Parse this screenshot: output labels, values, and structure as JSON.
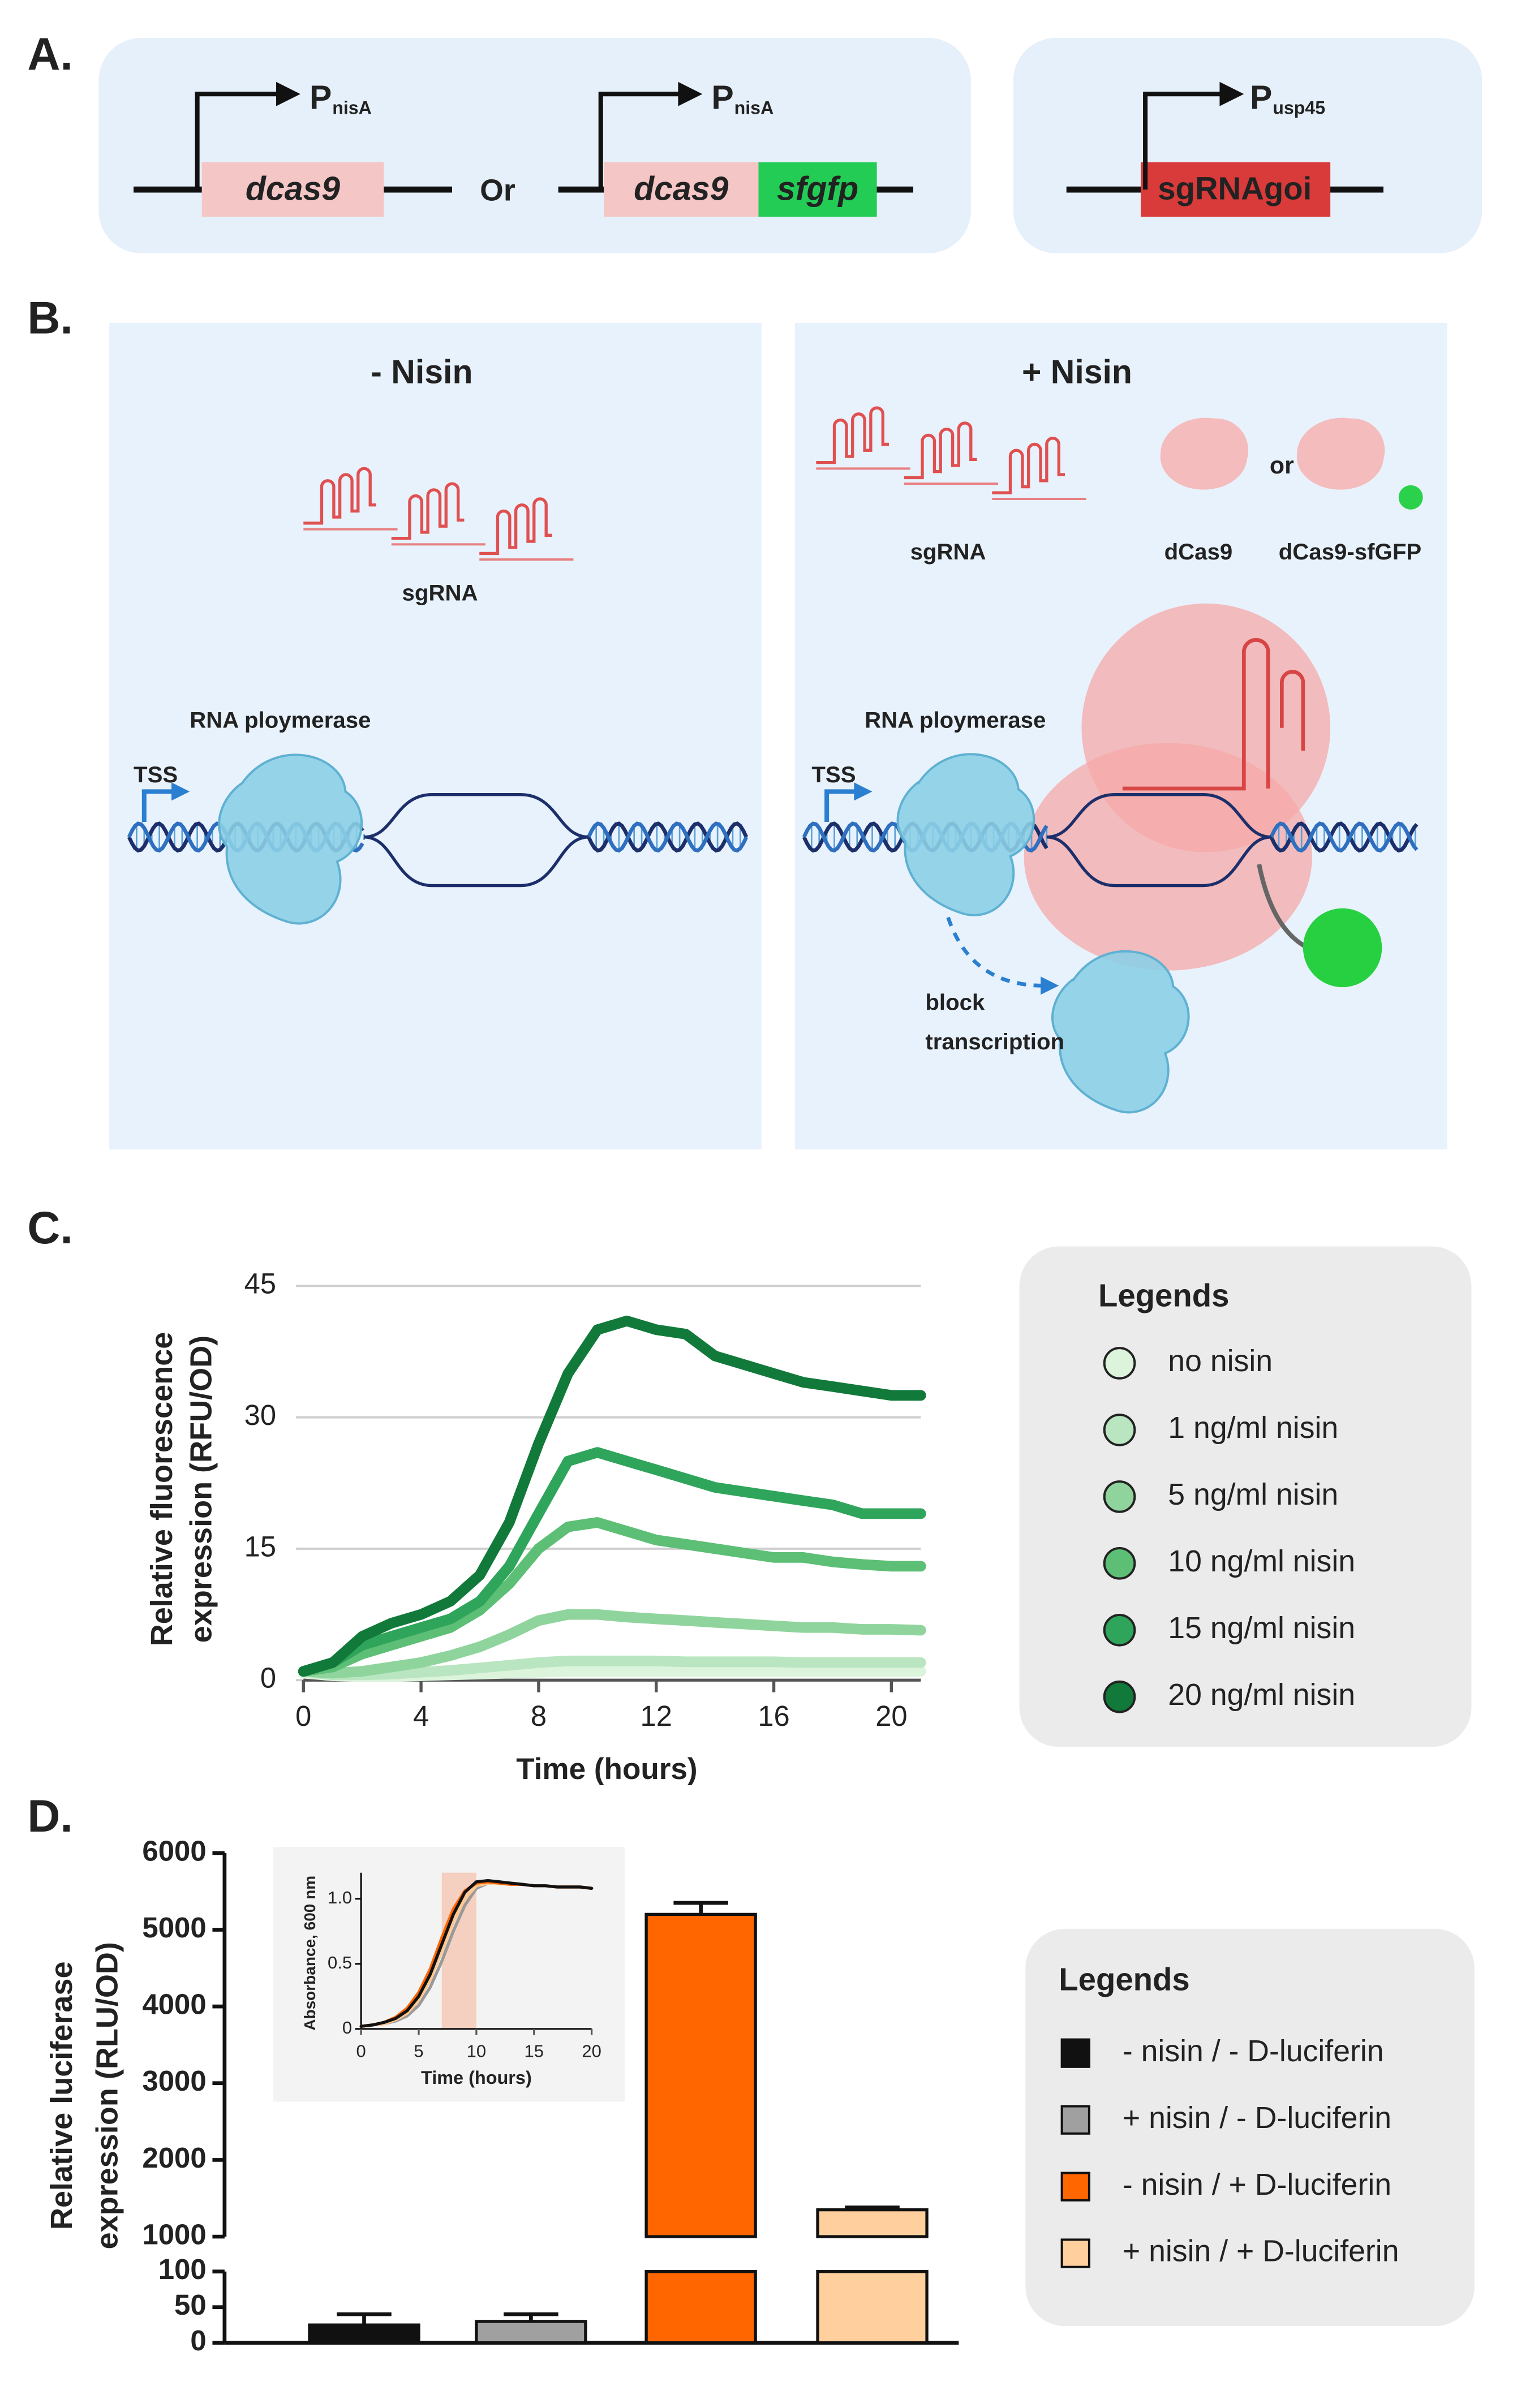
{
  "panel_a": {
    "label": "A.",
    "construct_1": {
      "promoter": "P",
      "promoter_sub": "nisA",
      "gene": "dcas9"
    },
    "or": "Or",
    "construct_2": {
      "promoter": "P",
      "promoter_sub": "nisA",
      "genes": [
        "dcas9",
        "sfgfp"
      ]
    },
    "construct_3": {
      "promoter": "P",
      "promoter_sub": "usp45",
      "gene": "sgRNAgoi"
    }
  },
  "panel_b": {
    "label": "B.",
    "left": {
      "title": "- Nisin",
      "sgrna": "sgRNA",
      "polymerase": "RNA ploymerase",
      "tss": "TSS"
    },
    "right": {
      "title": "+ Nisin",
      "sgrna": "sgRNA",
      "dcas9": "dCas9",
      "or": "or",
      "dcas9_sfgfp": "dCas9-sfGFP",
      "polymerase": "RNA ploymerase",
      "tss": "TSS",
      "block": [
        "block",
        "transcription"
      ]
    }
  },
  "chart_data": [
    {
      "type": "line",
      "panel": "C.",
      "y_label": [
        "Relative fluorescence",
        "expression (RFU/OD)"
      ],
      "x_label": "Time (hours)",
      "x": [
        0,
        1,
        2,
        3,
        4,
        5,
        6,
        7,
        8,
        9,
        10,
        11,
        12,
        13,
        14,
        15,
        16,
        17,
        18,
        19,
        20,
        21
      ],
      "xlim": [
        0,
        21
      ],
      "xticks": [
        0,
        4,
        8,
        12,
        16,
        20
      ],
      "ylim": [
        0,
        45
      ],
      "yticks": [
        0,
        15,
        30,
        45
      ],
      "grid": true,
      "legend_title": "Legends",
      "series": [
        {
          "name": "no nisin",
          "color": "#dcf3dc",
          "values": [
            0.8,
            0.5,
            0.4,
            0.4,
            0.5,
            0.6,
            0.7,
            0.8,
            0.9,
            1,
            1,
            1,
            1,
            1,
            1,
            1,
            1,
            1,
            1,
            1,
            1,
            1
          ]
        },
        {
          "name": "1 ng/ml nisin",
          "color": "#b9e6c0",
          "values": [
            1,
            0.6,
            0.6,
            0.7,
            0.9,
            1.1,
            1.4,
            1.7,
            2,
            2.2,
            2.2,
            2.2,
            2.2,
            2.1,
            2.1,
            2.1,
            2.1,
            2,
            2,
            2,
            2,
            2
          ]
        },
        {
          "name": "5 ng/ml nisin",
          "color": "#8fd49c",
          "values": [
            1,
            0.8,
            1,
            1.5,
            2,
            2.8,
            3.8,
            5.2,
            6.8,
            7.5,
            7.5,
            7.2,
            7,
            6.8,
            6.6,
            6.4,
            6.2,
            6,
            6,
            5.8,
            5.8,
            5.7
          ]
        },
        {
          "name": "10 ng/ml nisin",
          "color": "#5cbf75",
          "values": [
            1,
            1.5,
            3,
            4,
            5,
            6,
            8,
            11,
            15,
            17.5,
            18,
            17,
            16,
            15.5,
            15,
            14.5,
            14,
            14,
            13.5,
            13.2,
            13,
            13
          ]
        },
        {
          "name": "15 ng/ml nisin",
          "color": "#2ea55a",
          "values": [
            1,
            2,
            4,
            5,
            6,
            7,
            9,
            13,
            19,
            25,
            26,
            25,
            24,
            23,
            22,
            21.5,
            21,
            20.5,
            20,
            19,
            19,
            19
          ]
        },
        {
          "name": "20 ng/ml nisin",
          "color": "#117a3a",
          "values": [
            1,
            2,
            5,
            6.5,
            7.5,
            9,
            12,
            18,
            27,
            35,
            40,
            41,
            40,
            39.5,
            37,
            36,
            35,
            34,
            33.5,
            33,
            32.5,
            32.5
          ]
        }
      ]
    },
    {
      "type": "bar",
      "panel": "D.",
      "y_label": [
        "Relative luciferase",
        "expression (RLU/OD)"
      ],
      "categories": [
        "- nisin / - D-luciferin",
        "+ nisin / - D-luciferin",
        "- nisin / + D-luciferin",
        "+ nisin / + D-luciferin"
      ],
      "values": [
        25,
        30,
        5200,
        1350
      ],
      "errors": [
        15,
        10,
        150,
        30
      ],
      "colors": [
        "#111111",
        "#a0a0a0",
        "#ff6600",
        "#ffd09e"
      ],
      "ylim": [
        0,
        6000
      ],
      "ybreak": [
        100,
        1000
      ],
      "yticks": [
        0,
        50,
        100,
        1000,
        2000,
        3000,
        4000,
        5000,
        6000
      ],
      "legend_title": "Legends"
    },
    {
      "type": "line",
      "y_label": [
        "Absorbance, 600 nm"
      ],
      "x_label": "Time (hours)",
      "x": [
        0,
        1,
        2,
        3,
        4,
        5,
        6,
        7,
        8,
        9,
        10,
        11,
        12,
        13,
        14,
        15,
        16,
        17,
        18,
        19,
        20
      ],
      "xlim": [
        0,
        20
      ],
      "xticks": [
        0,
        5,
        10,
        15,
        20
      ],
      "ylim": [
        0,
        1.2
      ],
      "yticks": [
        0,
        0.5,
        {
          "value": 1,
          "label": "1.0"
        }
      ],
      "grid": false,
      "highlight": [
        7,
        10
      ],
      "highlight_color": "#f7b89c",
      "series": [
        {
          "color": "#999999",
          "values": [
            0.02,
            0.03,
            0.04,
            0.06,
            0.1,
            0.18,
            0.32,
            0.52,
            0.75,
            0.95,
            1.08,
            1.12,
            1.13,
            1.12,
            1.11,
            1.1,
            1.1,
            1.09,
            1.09,
            1.09,
            1.08
          ]
        },
        {
          "color": "#ffc890",
          "values": [
            0.02,
            0.03,
            0.04,
            0.07,
            0.12,
            0.22,
            0.38,
            0.6,
            0.83,
            1,
            1.1,
            1.12,
            1.12,
            1.11,
            1.11,
            1.1,
            1.1,
            1.09,
            1.09,
            1.09,
            1.08
          ]
        },
        {
          "color": "#ff6600",
          "values": [
            0.02,
            0.03,
            0.05,
            0.09,
            0.16,
            0.28,
            0.46,
            0.7,
            0.92,
            1.06,
            1.12,
            1.13,
            1.12,
            1.11,
            1.11,
            1.1,
            1.1,
            1.09,
            1.09,
            1.09,
            1.08
          ]
        },
        {
          "color": "#111111",
          "values": [
            0.02,
            0.03,
            0.05,
            0.08,
            0.14,
            0.25,
            0.42,
            0.65,
            0.88,
            1.05,
            1.13,
            1.14,
            1.13,
            1.12,
            1.11,
            1.1,
            1.1,
            1.09,
            1.09,
            1.09,
            1.08
          ]
        }
      ]
    }
  ]
}
